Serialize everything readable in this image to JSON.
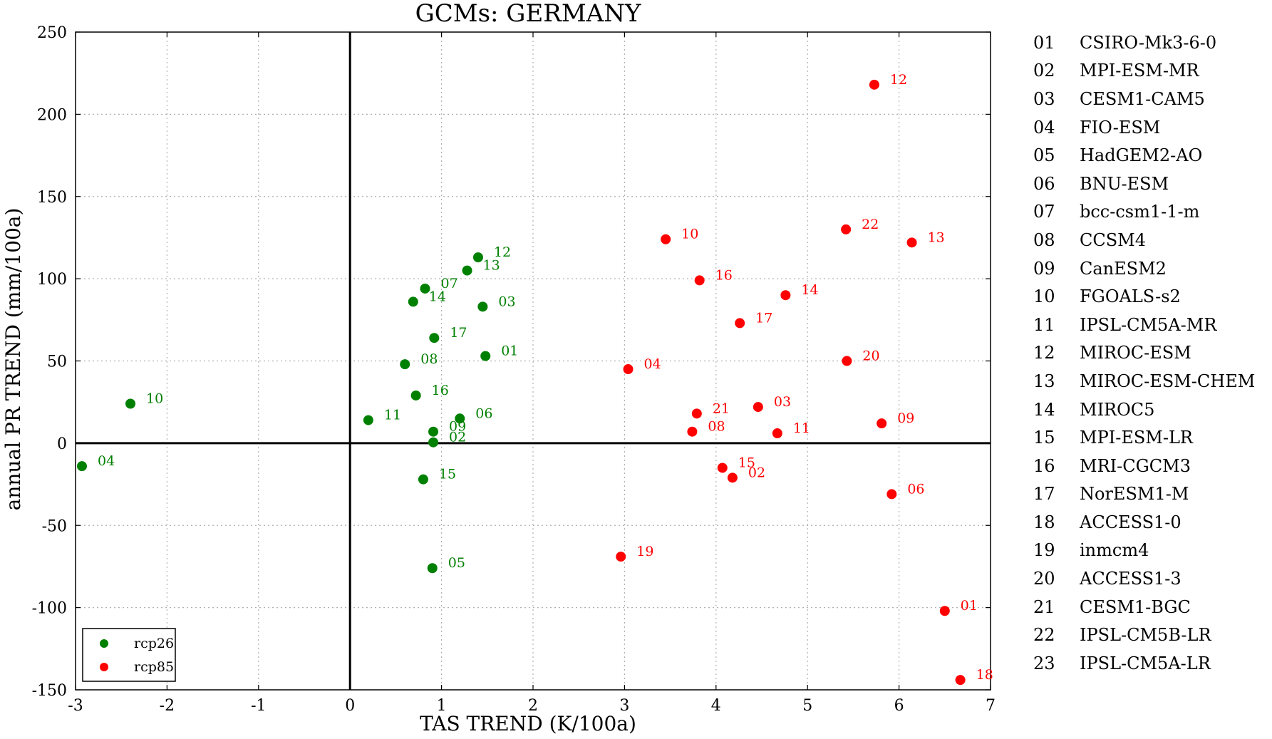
{
  "chart_data": {
    "type": "scatter",
    "title": "GCMs: GERMANY",
    "xlabel": "TAS TREND (K/100a)",
    "ylabel": "annual PR TREND (mm/100a)",
    "xlim": [
      -3,
      7
    ],
    "ylim": [
      -150,
      250
    ],
    "xticks": [
      -3,
      -2,
      -1,
      0,
      1,
      2,
      3,
      4,
      5,
      6,
      7
    ],
    "yticks": [
      -150,
      -100,
      -50,
      0,
      50,
      100,
      150,
      200,
      250
    ],
    "grid": true,
    "legend_position": "lower-left",
    "series": [
      {
        "name": "rcp26",
        "color": "#008000",
        "points": [
          {
            "label": "01",
            "x": 1.48,
            "y": 53
          },
          {
            "label": "03",
            "x": 1.45,
            "y": 83
          },
          {
            "label": "04",
            "x": -2.93,
            "y": -14
          },
          {
            "label": "05",
            "x": 0.9,
            "y": -76
          },
          {
            "label": "06",
            "x": 1.2,
            "y": 15
          },
          {
            "label": "07",
            "x": 0.82,
            "y": 94
          },
          {
            "label": "08",
            "x": 0.6,
            "y": 48
          },
          {
            "label": "09",
            "x": 0.91,
            "y": 7
          },
          {
            "label": "02",
            "x": 0.91,
            "y": 0.5
          },
          {
            "label": "10",
            "x": -2.4,
            "y": 24
          },
          {
            "label": "11",
            "x": 0.2,
            "y": 14
          },
          {
            "label": "12",
            "x": 1.4,
            "y": 113
          },
          {
            "label": "13",
            "x": 1.28,
            "y": 105
          },
          {
            "label": "14",
            "x": 0.69,
            "y": 86
          },
          {
            "label": "15",
            "x": 0.8,
            "y": -22
          },
          {
            "label": "16",
            "x": 0.72,
            "y": 29
          },
          {
            "label": "17",
            "x": 0.92,
            "y": 64
          }
        ]
      },
      {
        "name": "rcp85",
        "color": "#ff0000",
        "points": [
          {
            "label": "01",
            "x": 6.5,
            "y": -102
          },
          {
            "label": "02",
            "x": 4.18,
            "y": -21
          },
          {
            "label": "03",
            "x": 4.46,
            "y": 22
          },
          {
            "label": "04",
            "x": 3.04,
            "y": 45
          },
          {
            "label": "06",
            "x": 5.92,
            "y": -31
          },
          {
            "label": "08",
            "x": 3.74,
            "y": 7
          },
          {
            "label": "09",
            "x": 5.81,
            "y": 12
          },
          {
            "label": "10",
            "x": 3.45,
            "y": 124
          },
          {
            "label": "11",
            "x": 4.67,
            "y": 6
          },
          {
            "label": "12",
            "x": 5.73,
            "y": 218
          },
          {
            "label": "13",
            "x": 6.14,
            "y": 122
          },
          {
            "label": "14",
            "x": 4.76,
            "y": 90
          },
          {
            "label": "15",
            "x": 4.07,
            "y": -15
          },
          {
            "label": "16",
            "x": 3.82,
            "y": 99
          },
          {
            "label": "17",
            "x": 4.26,
            "y": 73
          },
          {
            "label": "18",
            "x": 6.67,
            "y": -144
          },
          {
            "label": "19",
            "x": 2.96,
            "y": -69
          },
          {
            "label": "20",
            "x": 5.43,
            "y": 50
          },
          {
            "label": "21",
            "x": 3.79,
            "y": 18
          },
          {
            "label": "22",
            "x": 5.42,
            "y": 130
          }
        ]
      }
    ]
  },
  "models": [
    {
      "num": "01",
      "name": "CSIRO-Mk3-6-0"
    },
    {
      "num": "02",
      "name": "MPI-ESM-MR"
    },
    {
      "num": "03",
      "name": "CESM1-CAM5"
    },
    {
      "num": "04",
      "name": "FIO-ESM"
    },
    {
      "num": "05",
      "name": "HadGEM2-AO"
    },
    {
      "num": "06",
      "name": "BNU-ESM"
    },
    {
      "num": "07",
      "name": "bcc-csm1-1-m"
    },
    {
      "num": "08",
      "name": "CCSM4"
    },
    {
      "num": "09",
      "name": "CanESM2"
    },
    {
      "num": "10",
      "name": "FGOALS-s2"
    },
    {
      "num": "11",
      "name": "IPSL-CM5A-MR"
    },
    {
      "num": "12",
      "name": "MIROC-ESM"
    },
    {
      "num": "13",
      "name": "MIROC-ESM-CHEM"
    },
    {
      "num": "14",
      "name": "MIROC5"
    },
    {
      "num": "15",
      "name": "MPI-ESM-LR"
    },
    {
      "num": "16",
      "name": "MRI-CGCM3"
    },
    {
      "num": "17",
      "name": "NorESM1-M"
    },
    {
      "num": "18",
      "name": "ACCESS1-0"
    },
    {
      "num": "19",
      "name": "inmcm4"
    },
    {
      "num": "20",
      "name": "ACCESS1-3"
    },
    {
      "num": "21",
      "name": "CESM1-BGC"
    },
    {
      "num": "22",
      "name": "IPSL-CM5B-LR"
    },
    {
      "num": "23",
      "name": "IPSL-CM5A-LR"
    }
  ]
}
